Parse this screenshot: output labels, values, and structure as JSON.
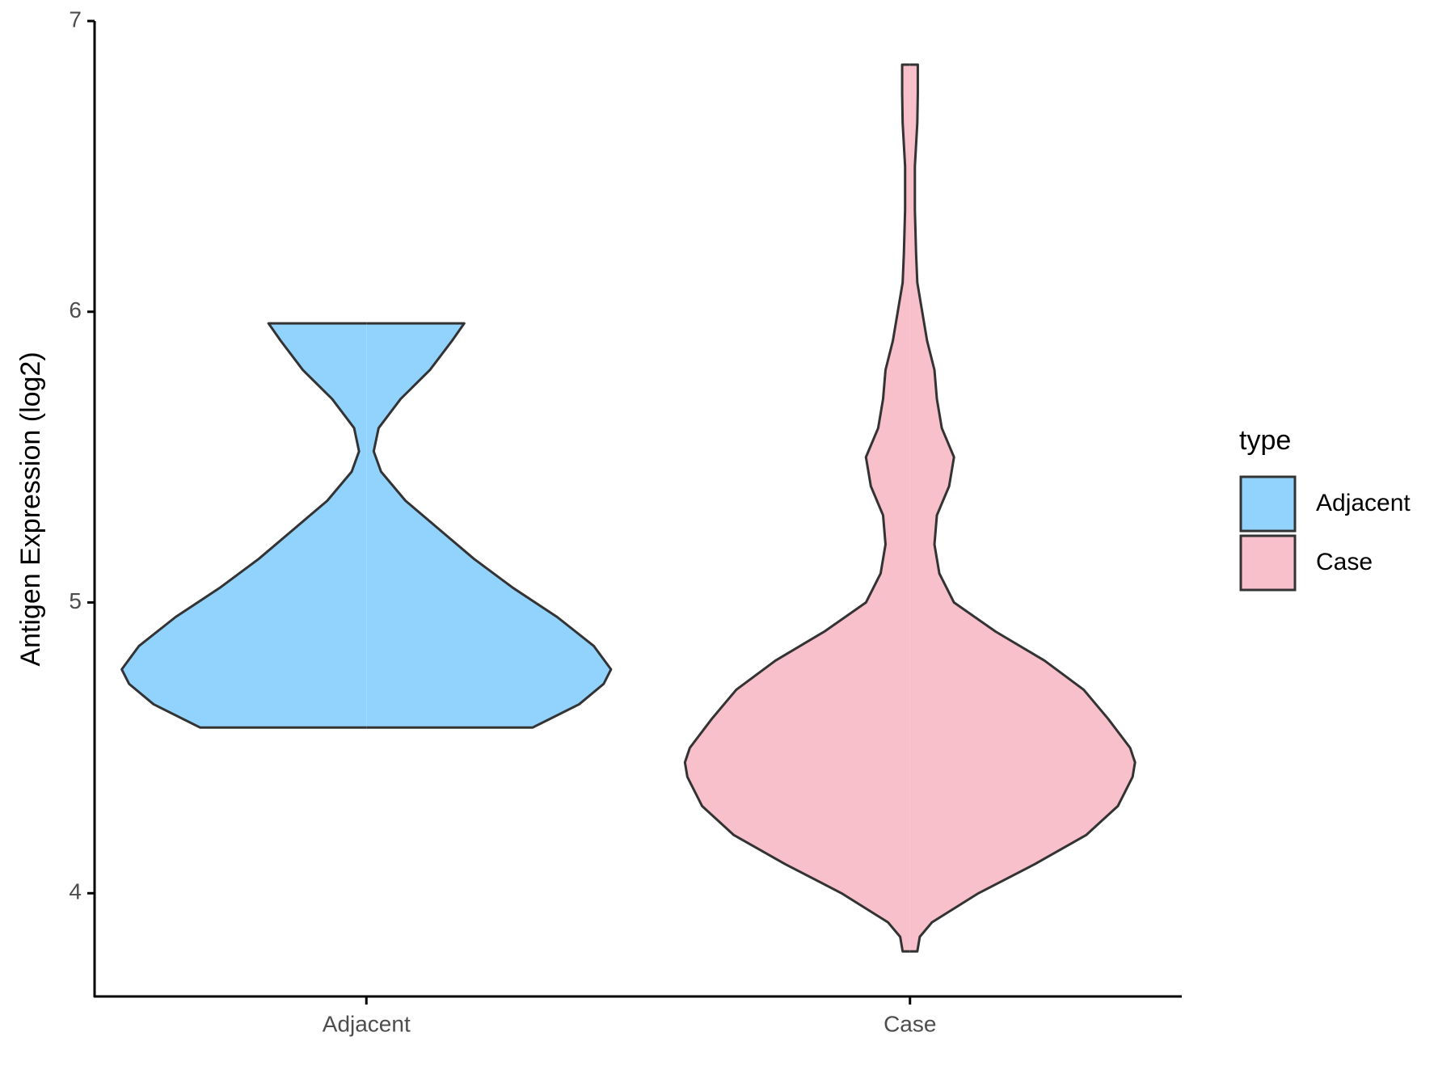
{
  "chart_data": {
    "type": "violin",
    "ylabel": "Antigen Expression (log2)",
    "categories": [
      "Adjacent",
      "Case"
    ],
    "legend_title": "type",
    "legend": "right",
    "ylim": [
      3.645,
      7
    ],
    "yticks": [
      4,
      5,
      6,
      7
    ],
    "series": [
      {
        "name": "Adjacent",
        "color": "#92D3FE",
        "y": [
          4.57,
          4.65,
          4.72,
          4.77,
          4.85,
          4.95,
          5.05,
          5.15,
          5.25,
          5.35,
          5.45,
          5.52,
          5.6,
          5.7,
          5.8,
          5.9,
          5.96
        ],
        "density": [
          0.68,
          0.87,
          0.97,
          1.0,
          0.93,
          0.78,
          0.6,
          0.44,
          0.3,
          0.16,
          0.06,
          0.03,
          0.05,
          0.14,
          0.26,
          0.35,
          0.4
        ]
      },
      {
        "name": "Case",
        "color": "#F7C0CB",
        "y": [
          3.8,
          3.85,
          3.9,
          4.0,
          4.1,
          4.2,
          4.3,
          4.4,
          4.45,
          4.5,
          4.6,
          4.7,
          4.8,
          4.9,
          5.0,
          5.1,
          5.2,
          5.3,
          5.4,
          5.5,
          5.6,
          5.7,
          5.8,
          5.9,
          6.0,
          6.1,
          6.2,
          6.35,
          6.5,
          6.65,
          6.75,
          6.85
        ],
        "density": [
          0.03,
          0.04,
          0.09,
          0.28,
          0.51,
          0.72,
          0.85,
          0.91,
          0.92,
          0.9,
          0.81,
          0.71,
          0.55,
          0.35,
          0.18,
          0.12,
          0.1,
          0.11,
          0.16,
          0.18,
          0.13,
          0.11,
          0.1,
          0.07,
          0.05,
          0.03,
          0.025,
          0.02,
          0.02,
          0.03,
          0.032,
          0.032
        ]
      }
    ]
  }
}
